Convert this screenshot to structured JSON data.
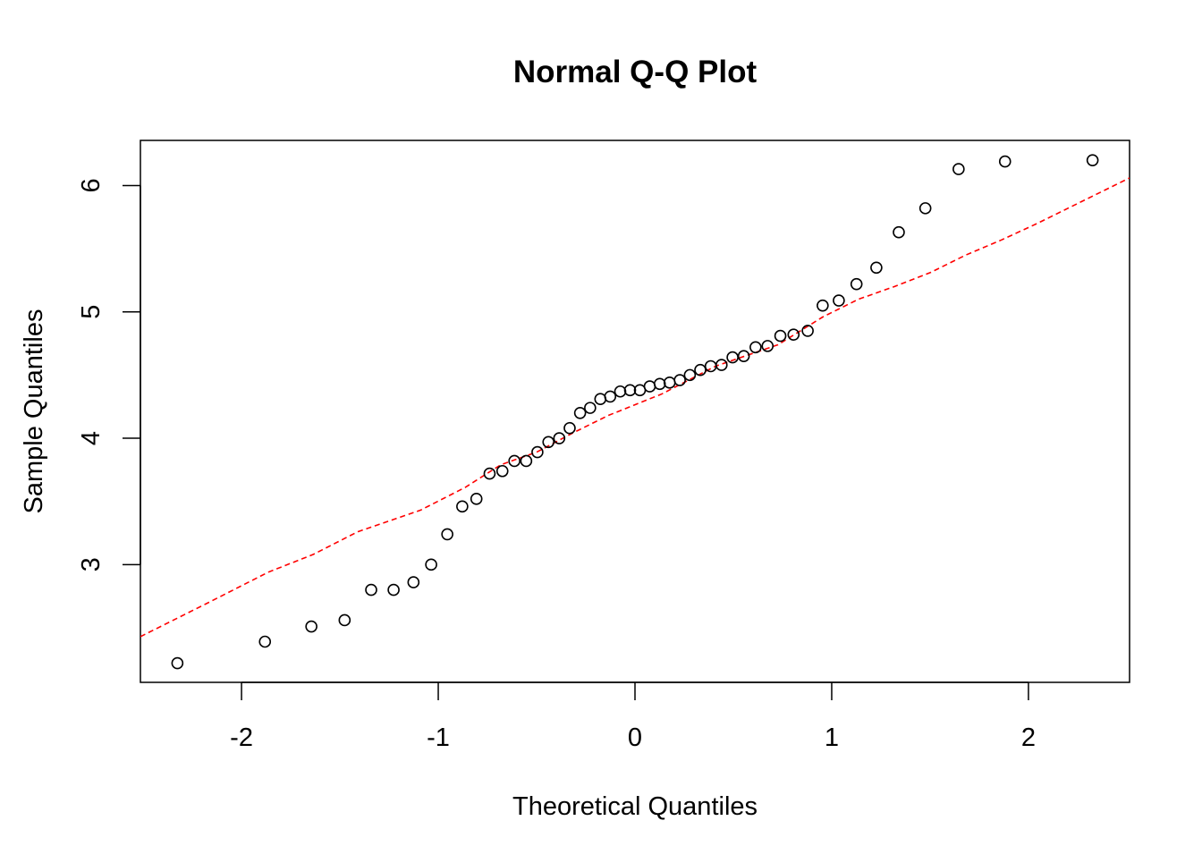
{
  "chart_data": {
    "type": "scatter",
    "title": "Normal Q-Q Plot",
    "xlabel": "Theoretical Quantiles",
    "ylabel": "Sample Quantiles",
    "xlim": [
      -2.514,
      2.514
    ],
    "ylim": [
      2.068,
      6.357
    ],
    "xticks": [
      -2,
      -1,
      0,
      1,
      2
    ],
    "xtick_labels": [
      "-2",
      "-1",
      "0",
      "1",
      "2"
    ],
    "yticks": [
      3,
      4,
      5,
      6
    ],
    "ytick_labels": [
      "3",
      "4",
      "5",
      "6"
    ],
    "grid": false,
    "colors": {
      "points": "#000000",
      "reference_line": "#ff0000"
    },
    "series": [
      {
        "name": "sample",
        "x": [
          -2.326,
          -1.881,
          -1.645,
          -1.476,
          -1.341,
          -1.227,
          -1.126,
          -1.036,
          -0.954,
          -0.878,
          -0.806,
          -0.739,
          -0.674,
          -0.613,
          -0.553,
          -0.496,
          -0.44,
          -0.385,
          -0.332,
          -0.279,
          -0.228,
          -0.176,
          -0.126,
          -0.075,
          -0.025,
          0.025,
          0.075,
          0.126,
          0.176,
          0.228,
          0.279,
          0.332,
          0.385,
          0.44,
          0.496,
          0.553,
          0.613,
          0.674,
          0.739,
          0.806,
          0.878,
          0.954,
          1.036,
          1.126,
          1.227,
          1.341,
          1.476,
          1.645,
          1.881,
          2.326
        ],
        "y": [
          2.22,
          2.39,
          2.51,
          2.56,
          2.8,
          2.8,
          2.86,
          3.0,
          3.24,
          3.46,
          3.52,
          3.72,
          3.74,
          3.82,
          3.82,
          3.89,
          3.97,
          4.0,
          4.08,
          4.2,
          4.24,
          4.31,
          4.33,
          4.37,
          4.38,
          4.38,
          4.41,
          4.43,
          4.44,
          4.46,
          4.5,
          4.54,
          4.57,
          4.58,
          4.64,
          4.65,
          4.72,
          4.73,
          4.81,
          4.82,
          4.85,
          5.05,
          5.09,
          5.22,
          5.35,
          5.63,
          5.82,
          6.13,
          6.19,
          6.2
        ]
      },
      {
        "name": "reference-line",
        "style": "dashed",
        "x": [
          -2.514,
          -2.18,
          -1.864,
          -1.636,
          -1.409,
          -1.091,
          -0.864,
          -0.682,
          -0.5,
          -0.318,
          -0.136,
          0.136,
          0.409,
          0.727,
          0.955,
          1.136,
          1.318,
          1.5,
          1.682,
          1.864,
          2.045,
          2.227,
          2.514
        ],
        "y": [
          2.43,
          2.69,
          2.94,
          3.08,
          3.26,
          3.43,
          3.61,
          3.79,
          3.89,
          4.04,
          4.18,
          4.35,
          4.57,
          4.74,
          4.96,
          5.1,
          5.2,
          5.31,
          5.45,
          5.57,
          5.7,
          5.84,
          6.06
        ]
      }
    ]
  }
}
